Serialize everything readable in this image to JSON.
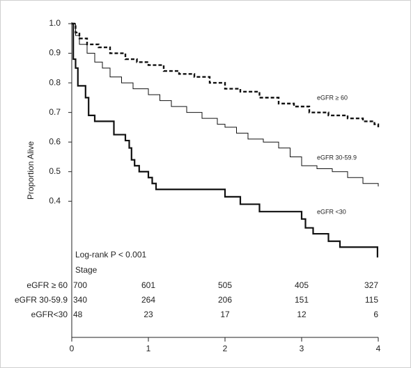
{
  "chart_data": {
    "type": "step",
    "ylabel": "Proportion Alive",
    "xlim": [
      0,
      4
    ],
    "xticks": [
      0,
      1,
      2,
      3,
      4
    ],
    "ylim": [
      -0.06,
      1.0
    ],
    "yticks": [
      {
        "value": 0.4,
        "label": "0.4"
      },
      {
        "value": 0.5,
        "label": "0.5"
      },
      {
        "value": 0.6,
        "label": "0.6"
      },
      {
        "value": 0.7,
        "label": "0.7"
      },
      {
        "value": 0.8,
        "label": "0.8"
      },
      {
        "value": 0.9,
        "label": "0.9"
      },
      {
        "value": 1.0,
        "label": "1.0"
      }
    ],
    "annotation": "Log-rank P < 0.001",
    "series": [
      {
        "name": "eGFR ≥ 60",
        "color": "#111111",
        "dash": true,
        "width": 2.4,
        "x": [
          0,
          0.05,
          0.1,
          0.2,
          0.35,
          0.5,
          0.7,
          0.85,
          1.0,
          1.2,
          1.4,
          1.6,
          1.8,
          2.0,
          2.2,
          2.45,
          2.7,
          2.9,
          3.1,
          3.35,
          3.6,
          3.8,
          3.95,
          4.0
        ],
        "values": [
          1.0,
          0.97,
          0.95,
          0.93,
          0.92,
          0.9,
          0.88,
          0.87,
          0.86,
          0.84,
          0.83,
          0.82,
          0.8,
          0.78,
          0.77,
          0.75,
          0.73,
          0.72,
          0.7,
          0.69,
          0.68,
          0.67,
          0.66,
          0.65
        ]
      },
      {
        "name": "eGFR 30-59.9",
        "color": "#111111",
        "dash": false,
        "width": 1,
        "x": [
          0,
          0.05,
          0.1,
          0.2,
          0.3,
          0.4,
          0.5,
          0.65,
          0.8,
          1.0,
          1.15,
          1.3,
          1.5,
          1.7,
          1.9,
          2.0,
          2.15,
          2.3,
          2.5,
          2.7,
          2.85,
          3.0,
          3.2,
          3.4,
          3.6,
          3.8,
          4.0
        ],
        "values": [
          1.0,
          0.96,
          0.93,
          0.9,
          0.87,
          0.85,
          0.82,
          0.8,
          0.78,
          0.76,
          0.74,
          0.72,
          0.7,
          0.68,
          0.66,
          0.65,
          0.63,
          0.61,
          0.6,
          0.58,
          0.55,
          0.52,
          0.51,
          0.5,
          0.48,
          0.46,
          0.45
        ]
      },
      {
        "name": "eGFR <30",
        "color": "#111111",
        "dash": false,
        "width": 2.2,
        "x": [
          0,
          0.02,
          0.05,
          0.08,
          0.18,
          0.22,
          0.3,
          0.55,
          0.7,
          0.75,
          0.78,
          0.82,
          0.88,
          1.0,
          1.05,
          1.1,
          2.0,
          2.2,
          2.45,
          3.0,
          3.05,
          3.15,
          3.35,
          3.5,
          3.99
        ],
        "values": [
          1.0,
          0.88,
          0.85,
          0.79,
          0.75,
          0.69,
          0.67,
          0.625,
          0.605,
          0.58,
          0.54,
          0.52,
          0.5,
          0.48,
          0.46,
          0.44,
          0.415,
          0.39,
          0.365,
          0.34,
          0.31,
          0.29,
          0.265,
          0.245,
          0.21
        ]
      }
    ],
    "risk_table": {
      "title": "Stage",
      "times": [
        0,
        1,
        2,
        3,
        4
      ],
      "rows": [
        {
          "label": "eGFR ≥ 60",
          "counts": [
            700,
            601,
            505,
            405,
            327
          ]
        },
        {
          "label": "eGFR 30-59.9",
          "counts": [
            340,
            264,
            206,
            151,
            115
          ]
        },
        {
          "label": "eGFR<30",
          "counts": [
            48,
            23,
            17,
            12,
            6
          ]
        }
      ]
    }
  }
}
